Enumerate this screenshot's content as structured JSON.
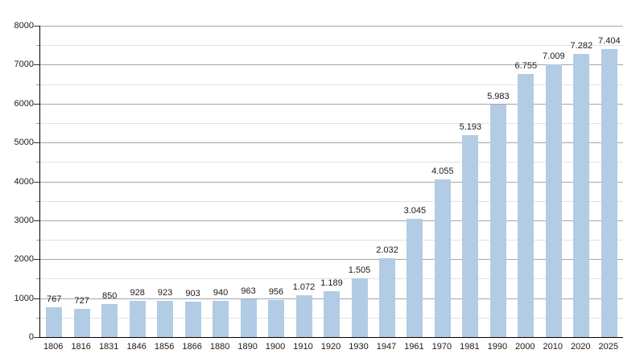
{
  "chart_data": {
    "type": "bar",
    "title": "",
    "xlabel": "",
    "ylabel": "",
    "categories": [
      "1806",
      "1816",
      "1831",
      "1846",
      "1856",
      "1866",
      "1880",
      "1890",
      "1900",
      "1910",
      "1920",
      "1930",
      "1947",
      "1961",
      "1970",
      "1981",
      "1990",
      "2000",
      "2010",
      "2020",
      "2025"
    ],
    "values": [
      767,
      727,
      850,
      928,
      923,
      903,
      940,
      963,
      956,
      1072,
      1189,
      1505,
      2032,
      3045,
      4055,
      5193,
      5983,
      6755,
      7009,
      7282,
      7404
    ],
    "value_labels": [
      "767",
      "727",
      "850",
      "928",
      "923",
      "903",
      "940",
      "963",
      "956",
      "1.072",
      "1.189",
      "1.505",
      "2.032",
      "3.045",
      "4.055",
      "5.193",
      "5.983",
      "6.755",
      "7.009",
      "7.282",
      "7.404"
    ],
    "ylim": [
      0,
      8000
    ],
    "y_major_ticks": [
      0,
      1000,
      2000,
      3000,
      4000,
      5000,
      6000,
      7000,
      8000
    ],
    "y_major_tick_labels": [
      "0",
      "1000",
      "2000",
      "3000",
      "4000",
      "5000",
      "6000",
      "7000",
      "8000"
    ],
    "y_minor_ticks": [
      500,
      1500,
      2500,
      3500,
      4500,
      5500,
      6500,
      7500
    ],
    "grid": "horizontal major and minor gridlines, behind bars",
    "legend": "none",
    "colors": {
      "bar_fill": "#b1cce4",
      "major_gridline": "#a6a6a6",
      "minor_gridline": "#e2e2e2",
      "axis": "#000000",
      "major_tick": "#333333",
      "minor_tick": "#999999",
      "text": "#1a1a1a",
      "background": "#ffffff"
    }
  }
}
